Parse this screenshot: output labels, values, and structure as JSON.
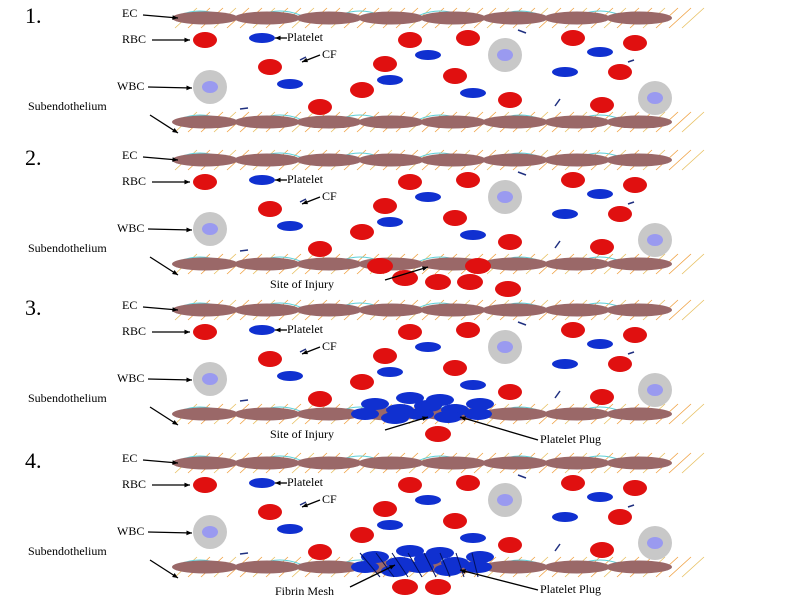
{
  "panels": [
    {
      "number": "1.",
      "ec": "EC",
      "rbc": "RBC",
      "platelet": "Platelet",
      "cf": "CF",
      "wbc": "WBC",
      "subendothelium": "Subendothelium"
    },
    {
      "number": "2.",
      "ec": "EC",
      "rbc": "RBC",
      "platelet": "Platelet",
      "cf": "CF",
      "wbc": "WBC",
      "subendothelium": "Subendothelium",
      "site_of_injury": "Site of Injury"
    },
    {
      "number": "3.",
      "ec": "EC",
      "rbc": "RBC",
      "platelet": "Platelet",
      "cf": "CF",
      "wbc": "WBC",
      "subendothelium": "Subendothelium",
      "site_of_injury": "Site of Injury",
      "platelet_plug": "Platelet Plug"
    },
    {
      "number": "4.",
      "ec": "EC",
      "rbc": "RBC",
      "platelet": "Platelet",
      "cf": "CF",
      "wbc": "WBC",
      "subendothelium": "Subendothelium",
      "fibrin_mesh": "Fibrin Mesh",
      "platelet_plug": "Platelet Plug"
    }
  ]
}
